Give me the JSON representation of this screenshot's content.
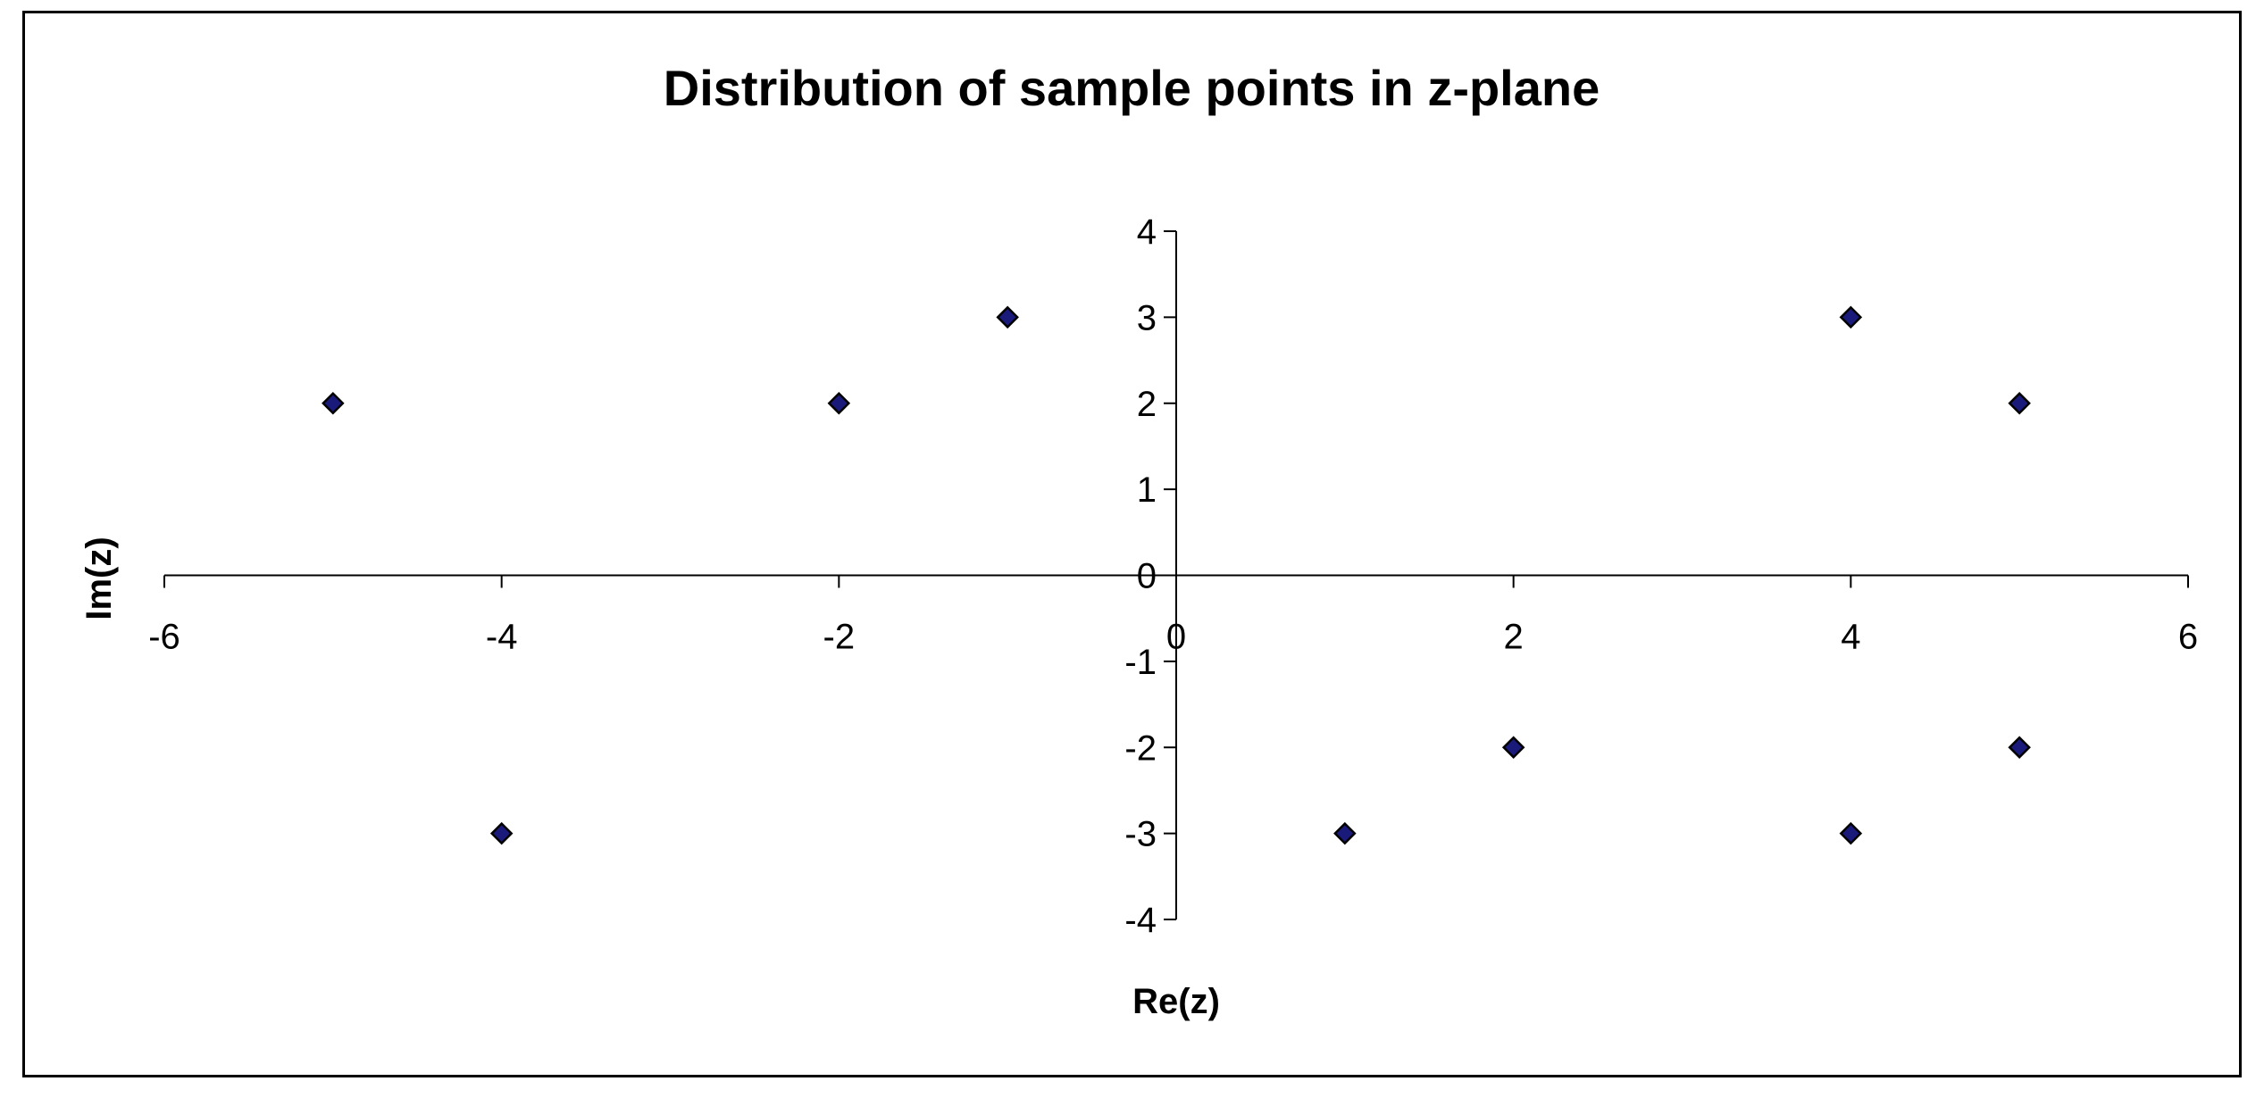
{
  "chart_data": {
    "type": "scatter",
    "title": "Distribution of sample points in z-plane",
    "xlabel": "Re(z)",
    "ylabel": "Im(z)",
    "xlim": [
      -6,
      6
    ],
    "ylim": [
      -4,
      4
    ],
    "x_ticks": [
      -6,
      -4,
      -2,
      0,
      2,
      4,
      6
    ],
    "y_ticks": [
      -4,
      -3,
      -2,
      -1,
      0,
      1,
      2,
      3,
      4
    ],
    "grid": false,
    "legend": "none",
    "marker": "diamond",
    "marker_color": "#1a1a7a",
    "marker_edge_color": "#000000",
    "points": [
      {
        "x": -5,
        "y": 2
      },
      {
        "x": -2,
        "y": 2
      },
      {
        "x": -1,
        "y": 3
      },
      {
        "x": 4,
        "y": 3
      },
      {
        "x": 5,
        "y": 2
      },
      {
        "x": -4,
        "y": -3
      },
      {
        "x": 1,
        "y": -3
      },
      {
        "x": 2,
        "y": -2
      },
      {
        "x": 4,
        "y": -3
      },
      {
        "x": 5,
        "y": -2
      }
    ]
  }
}
